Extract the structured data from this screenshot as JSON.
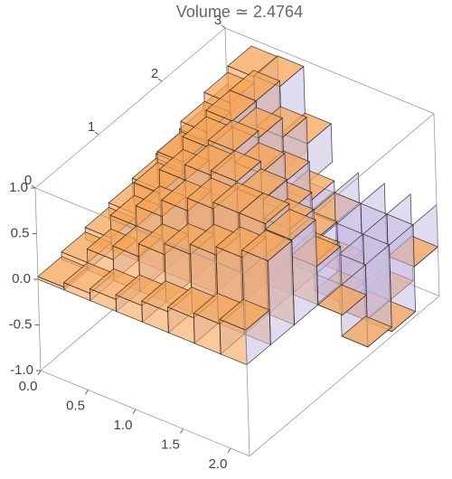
{
  "chart_data": {
    "type": "bar3d",
    "title": "Volume ≃ 2.4764",
    "xbins": [
      0,
      0.275,
      0.55,
      0.825,
      1.1,
      1.375,
      1.65,
      1.925,
      2.2
    ],
    "ybins": [
      0,
      0.375,
      0.75,
      1.125,
      1.5,
      1.875,
      2.25,
      2.625,
      3
    ],
    "values": [
      [
        0.03,
        0.08,
        0.13,
        0.18,
        0.23,
        0.28,
        0.33,
        0.38
      ],
      [
        0.08,
        0.23,
        0.38,
        0.52,
        0.64,
        0.75,
        0.85,
        0.92
      ],
      [
        0.13,
        0.38,
        0.6,
        0.78,
        0.92,
        0.99,
        0.99,
        0.93
      ],
      [
        0.18,
        0.52,
        0.78,
        0.95,
        1.0,
        0.92,
        0.71,
        0.42
      ],
      [
        0.23,
        0.64,
        0.92,
        1.0,
        0.87,
        0.56,
        0.13,
        -0.33
      ],
      [
        0.28,
        0.75,
        0.99,
        0.92,
        0.56,
        0.02,
        -0.52,
        -0.9
      ],
      [
        0.33,
        0.84,
        0.99,
        0.71,
        0.13,
        -0.52,
        -0.94,
        -0.95
      ],
      [
        0.38,
        0.92,
        0.93,
        0.42,
        -0.33,
        -0.9,
        -0.95,
        -0.46
      ]
    ],
    "color": "#f5a55a",
    "side_color": "#c9bde3",
    "xlim": [
      0,
      2.2
    ],
    "ylim": [
      0,
      3
    ],
    "zlim": [
      -1,
      1
    ],
    "xticks": [
      {
        "value": 0,
        "label": "0.0"
      },
      {
        "value": 0.5,
        "label": "0.5"
      },
      {
        "value": 1,
        "label": "1.0"
      },
      {
        "value": 1.5,
        "label": "1.5"
      },
      {
        "value": 2,
        "label": "2.0"
      }
    ],
    "yticks": [
      0,
      1,
      2,
      3
    ],
    "zticks": [
      {
        "value": -1,
        "label": "-1.0"
      },
      {
        "value": -0.5,
        "label": "-0.5"
      },
      {
        "value": 0,
        "label": "0.0"
      },
      {
        "value": 0.5,
        "label": "0.5"
      },
      {
        "value": 1,
        "label": "1.0"
      }
    ]
  }
}
